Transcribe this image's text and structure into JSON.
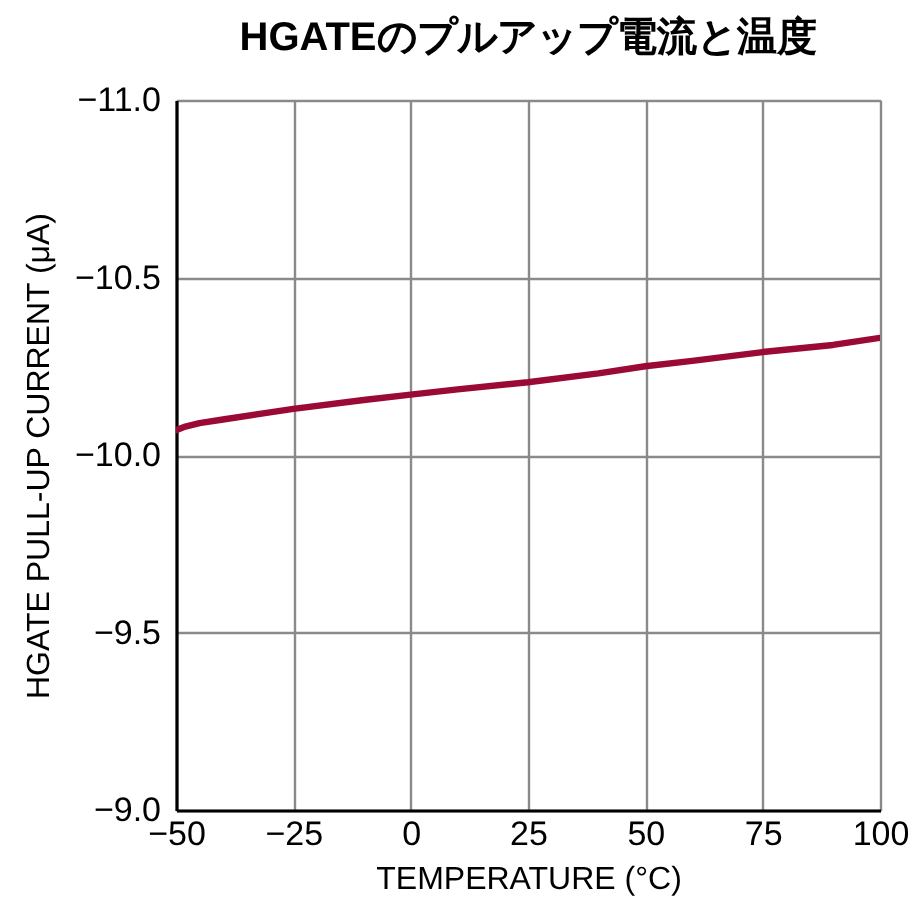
{
  "chart_data": {
    "type": "line",
    "title": "HGATEのプルアップ電流と温度",
    "xlabel": "TEMPERATURE (°C)",
    "ylabel": "HGATE PULL-UP CURRENT (μA)",
    "x": [
      -50,
      -48,
      -45,
      -40,
      -30,
      -25,
      -10,
      0,
      10,
      25,
      40,
      50,
      60,
      75,
      90,
      100
    ],
    "series": [
      {
        "color": "#9a0a35",
        "values": [
          -10.07,
          -10.08,
          -10.09,
          -10.1,
          -10.12,
          -10.13,
          -10.155,
          -10.17,
          -10.185,
          -10.205,
          -10.23,
          -10.25,
          -10.265,
          -10.29,
          -10.31,
          -10.33
        ]
      }
    ],
    "xlim": [
      -50,
      100
    ],
    "xticks": [
      {
        "value": -50,
        "label": "−50"
      },
      {
        "value": -25,
        "label": "−25"
      },
      0,
      25,
      50,
      75,
      100
    ],
    "ylim": [
      -9.0,
      -11.0
    ],
    "yticks": [
      {
        "value": -11,
        "label": "−11.0"
      },
      {
        "value": -10.5,
        "label": "−10.5"
      },
      {
        "value": -10,
        "label": "−10.0"
      },
      {
        "value": -9.5,
        "label": "−9.5"
      },
      {
        "value": -9,
        "label": "−9.0"
      }
    ],
    "grid": true
  }
}
